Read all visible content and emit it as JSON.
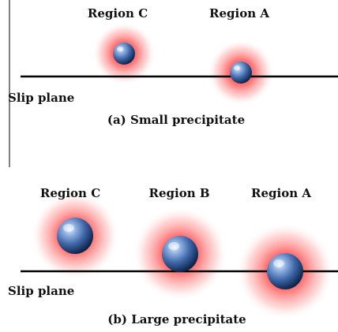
{
  "colors": {
    "halo": "#ff3b3b",
    "sphere_light": "#d6e6ff",
    "sphere_mid": "#5a86c8",
    "sphere_dark": "#102a55",
    "line": "#000000"
  },
  "panel_a": {
    "regions": [
      {
        "label": "Region C"
      },
      {
        "label": "Region A"
      }
    ],
    "slip_label": "Slip plane",
    "caption": "(a) Small precipitate"
  },
  "panel_b": {
    "regions": [
      {
        "label": "Region C"
      },
      {
        "label": "Region B"
      },
      {
        "label": "Region A"
      }
    ],
    "slip_label": "Slip plane",
    "caption": "(b) Large precipitate"
  }
}
